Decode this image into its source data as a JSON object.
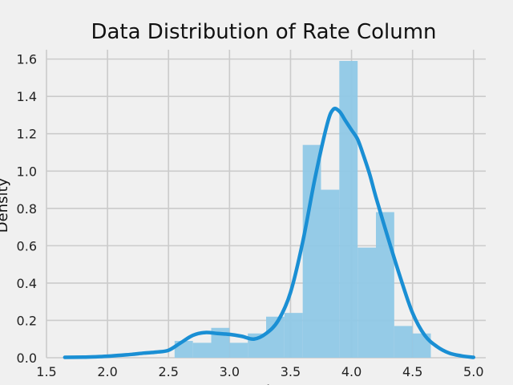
{
  "chart_data": {
    "type": "bar",
    "title": "Data Distribution of Rate Column",
    "xlabel": "rate",
    "ylabel": "Density",
    "xlim": [
      1.5,
      5.1
    ],
    "ylim": [
      0,
      1.65
    ],
    "xticks": [
      1.5,
      2.0,
      2.5,
      3.0,
      3.5,
      4.0,
      4.5,
      5.0
    ],
    "xtick_labels": [
      "1.5",
      "2.0",
      "2.5",
      "3.0",
      "3.5",
      "4.0",
      "4.5",
      "5.0"
    ],
    "yticks": [
      0.0,
      0.2,
      0.4,
      0.6,
      0.8,
      1.0,
      1.2,
      1.4,
      1.6
    ],
    "ytick_labels": [
      "0.0",
      "0.2",
      "0.4",
      "0.6",
      "0.8",
      "1.0",
      "1.2",
      "1.4",
      "1.6"
    ],
    "grid": true,
    "bar_color": "#8fc8e6",
    "kde_color": "#1a8fd4",
    "background": "#f0f0f0",
    "grid_color": "#cbcbcb",
    "histogram": {
      "bin_edges": [
        2.55,
        2.7,
        2.85,
        3.0,
        3.15,
        3.3,
        3.45,
        3.6,
        3.75,
        3.9,
        4.05,
        4.2,
        4.35,
        4.5,
        4.65
      ],
      "density": [
        0.09,
        0.08,
        0.16,
        0.08,
        0.13,
        0.22,
        0.24,
        1.14,
        0.9,
        1.59,
        0.59,
        0.78,
        0.17,
        0.13
      ]
    },
    "kde": {
      "x": [
        1.65,
        1.8,
        1.9,
        2.0,
        2.1,
        2.2,
        2.3,
        2.4,
        2.5,
        2.6,
        2.7,
        2.8,
        2.9,
        3.0,
        3.1,
        3.2,
        3.3,
        3.4,
        3.5,
        3.6,
        3.7,
        3.8,
        3.85,
        3.9,
        3.95,
        4.0,
        4.05,
        4.1,
        4.15,
        4.2,
        4.3,
        4.4,
        4.5,
        4.6,
        4.7,
        4.8,
        4.9,
        5.0
      ],
      "y": [
        0.002,
        0.003,
        0.005,
        0.008,
        0.013,
        0.018,
        0.025,
        0.03,
        0.04,
        0.08,
        0.12,
        0.135,
        0.13,
        0.125,
        0.115,
        0.1,
        0.13,
        0.2,
        0.35,
        0.62,
        0.96,
        1.25,
        1.33,
        1.32,
        1.27,
        1.22,
        1.17,
        1.08,
        0.98,
        0.86,
        0.64,
        0.43,
        0.24,
        0.12,
        0.06,
        0.025,
        0.01,
        0.002
      ]
    }
  }
}
